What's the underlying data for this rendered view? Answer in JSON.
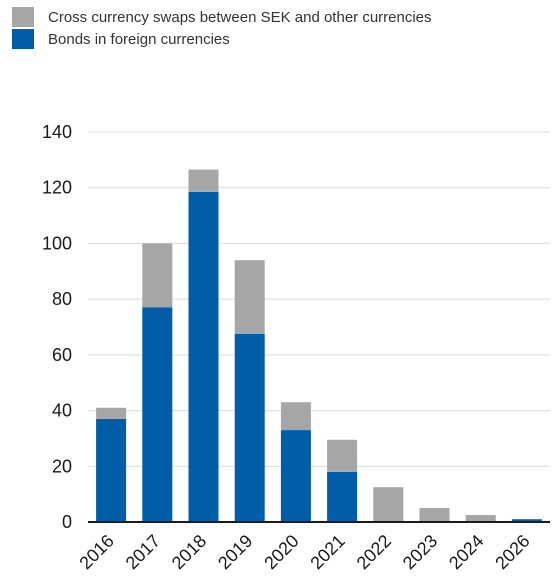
{
  "chart_data": {
    "type": "bar",
    "stacked": true,
    "title": "",
    "xlabel": "",
    "ylabel": "",
    "ylim": [
      0,
      140
    ],
    "yticks": [
      0,
      20,
      40,
      60,
      80,
      100,
      120,
      140
    ],
    "grid": true,
    "legend_position": "top-left",
    "categories": [
      "2016",
      "2017",
      "2018",
      "2019",
      "2020",
      "2021",
      "2022",
      "2023",
      "2024",
      "2026"
    ],
    "series": [
      {
        "name": "Bonds in foreign currencies",
        "color": "#005ea8",
        "values": [
          37,
          77,
          118.5,
          67.5,
          33,
          18,
          0,
          0,
          0,
          1
        ]
      },
      {
        "name": "Cross currency swaps between SEK and other currencies",
        "color": "#a6a6a6",
        "values": [
          4,
          23,
          8,
          26.5,
          10,
          11.5,
          12.5,
          5,
          2.5,
          0
        ]
      }
    ]
  }
}
